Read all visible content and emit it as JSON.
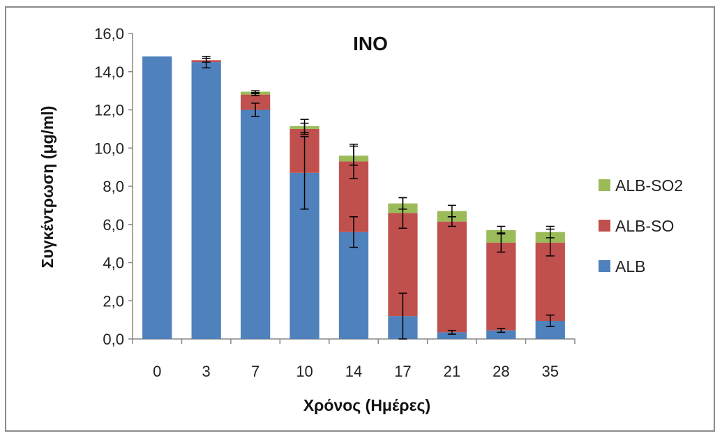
{
  "chart_data": {
    "type": "bar",
    "stacked": true,
    "title": "INO",
    "xlabel": "Χρόνος (Ημέρες)",
    "ylabel": "Συγκέντρωση (μg/ml)",
    "categories": [
      "0",
      "3",
      "7",
      "10",
      "14",
      "17",
      "21",
      "28",
      "35"
    ],
    "ylim": [
      0,
      16
    ],
    "yticks": [
      "0,0",
      "2,0",
      "4,0",
      "6,0",
      "8,0",
      "10,0",
      "12,0",
      "14,0",
      "16,0"
    ],
    "series": [
      {
        "name": "ALB",
        "color": "#4f81bd",
        "values": [
          14.8,
          14.5,
          12.0,
          8.7,
          5.6,
          1.2,
          0.35,
          0.45,
          0.95
        ],
        "errors": [
          0.0,
          0.3,
          0.35,
          1.9,
          0.8,
          1.2,
          0.1,
          0.1,
          0.3
        ]
      },
      {
        "name": "ALB-SO",
        "color": "#c0504d",
        "values": [
          0.0,
          0.1,
          0.8,
          2.3,
          3.7,
          5.4,
          5.8,
          4.6,
          4.1
        ],
        "errors": [
          0.0,
          0.1,
          0.05,
          0.3,
          0.9,
          0.8,
          0.25,
          0.5,
          0.7
        ]
      },
      {
        "name": "ALB-SO2",
        "color": "#9bbb59",
        "values": [
          0.0,
          0.0,
          0.15,
          0.15,
          0.3,
          0.5,
          0.55,
          0.65,
          0.55
        ],
        "errors": [
          0.0,
          0.0,
          0.05,
          0.35,
          0.5,
          0.3,
          0.3,
          0.2,
          0.3
        ]
      }
    ],
    "legend_position": "right",
    "grid": false
  }
}
